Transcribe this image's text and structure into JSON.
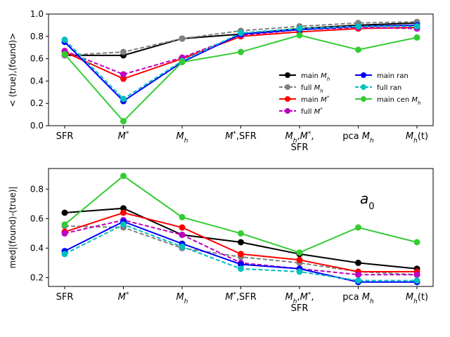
{
  "chart_data": [
    {
      "type": "line",
      "title": "",
      "xlabel": "",
      "ylabel": "< (true),(found)>",
      "ylim": [
        0.0,
        1.0
      ],
      "yticks": [
        0.0,
        0.2,
        0.4,
        0.6,
        0.8,
        1.0
      ],
      "ytick_labels": [
        "0.0",
        "0.2",
        "0.4",
        "0.6",
        "0.8",
        "1.0"
      ],
      "categories": [
        "SFR",
        "M*",
        "Mh",
        "M*,SFR",
        "Mh,M*,SFR",
        "pca Mh",
        "Mh(t)"
      ],
      "legend": {
        "location": "center-right",
        "ncol": 2
      },
      "series": [
        {
          "name": "main M_h",
          "color": "#000000",
          "dashed": false,
          "values": [
            0.63,
            0.63,
            0.78,
            0.82,
            0.87,
            0.9,
            0.92
          ]
        },
        {
          "name": "full M_h",
          "color": "#808080",
          "dashed": true,
          "values": [
            0.63,
            0.66,
            0.78,
            0.85,
            0.89,
            0.92,
            0.93
          ]
        },
        {
          "name": "main M^*",
          "color": "#ff0000",
          "dashed": false,
          "values": [
            0.66,
            0.42,
            0.6,
            0.8,
            0.84,
            0.87,
            0.88
          ]
        },
        {
          "name": "full M^*",
          "color": "#bf00bf",
          "dashed": true,
          "values": [
            0.67,
            0.46,
            0.61,
            0.81,
            0.86,
            0.88,
            0.87
          ]
        },
        {
          "name": "main ran",
          "color": "#0000ff",
          "dashed": false,
          "values": [
            0.75,
            0.22,
            0.57,
            0.82,
            0.86,
            0.89,
            0.9
          ]
        },
        {
          "name": "full ran",
          "color": "#00bfbf",
          "dashed": true,
          "values": [
            0.77,
            0.24,
            0.58,
            0.83,
            0.87,
            0.89,
            0.89
          ]
        },
        {
          "name": "main cen M_h",
          "color": "#33cc33",
          "dashed": false,
          "values": [
            0.64,
            0.04,
            0.57,
            0.66,
            0.81,
            0.68,
            0.79
          ]
        }
      ]
    },
    {
      "type": "line",
      "title": "",
      "xlabel": "",
      "ylabel": "med|(found)-(true)|",
      "annotation": "a_0",
      "ylim": [
        0.14,
        0.94
      ],
      "yticks": [
        0.2,
        0.4,
        0.6,
        0.8
      ],
      "ytick_labels": [
        "0.2",
        "0.4",
        "0.6",
        "0.8"
      ],
      "categories": [
        "SFR",
        "M*",
        "Mh",
        "M*,SFR",
        "Mh,M*,SFR",
        "pca Mh",
        "Mh(t)"
      ],
      "series": [
        {
          "name": "main M_h",
          "color": "#000000",
          "dashed": false,
          "values": [
            0.64,
            0.67,
            0.49,
            0.44,
            0.36,
            0.3,
            0.26
          ]
        },
        {
          "name": "full M_h",
          "color": "#808080",
          "dashed": true,
          "values": [
            0.55,
            0.54,
            0.4,
            0.34,
            0.3,
            0.24,
            0.22
          ]
        },
        {
          "name": "main M^*",
          "color": "#ff0000",
          "dashed": false,
          "values": [
            0.51,
            0.64,
            0.54,
            0.36,
            0.32,
            0.24,
            0.24
          ]
        },
        {
          "name": "full M^*",
          "color": "#bf00bf",
          "dashed": true,
          "values": [
            0.5,
            0.59,
            0.49,
            0.3,
            0.26,
            0.22,
            0.22
          ]
        },
        {
          "name": "main ran",
          "color": "#0000ff",
          "dashed": false,
          "values": [
            0.38,
            0.58,
            0.43,
            0.29,
            0.26,
            0.17,
            0.17
          ]
        },
        {
          "name": "full ran",
          "color": "#00bfbf",
          "dashed": true,
          "values": [
            0.36,
            0.56,
            0.41,
            0.26,
            0.24,
            0.18,
            0.18
          ]
        },
        {
          "name": "main cen M_h",
          "color": "#33cc33",
          "dashed": false,
          "values": [
            0.56,
            0.89,
            0.61,
            0.5,
            0.37,
            0.54,
            0.44
          ]
        }
      ]
    }
  ]
}
